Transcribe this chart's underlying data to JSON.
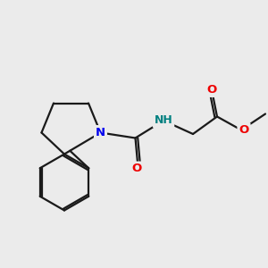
{
  "bg_color": "#ebebeb",
  "bond_color": "#1a1a1a",
  "N_color": "#0000ee",
  "O_color": "#ee0000",
  "NH_color": "#008080",
  "figsize": [
    3.0,
    3.0
  ],
  "dpi": 100,
  "xlim": [
    0,
    10
  ],
  "ylim": [
    0,
    10
  ]
}
